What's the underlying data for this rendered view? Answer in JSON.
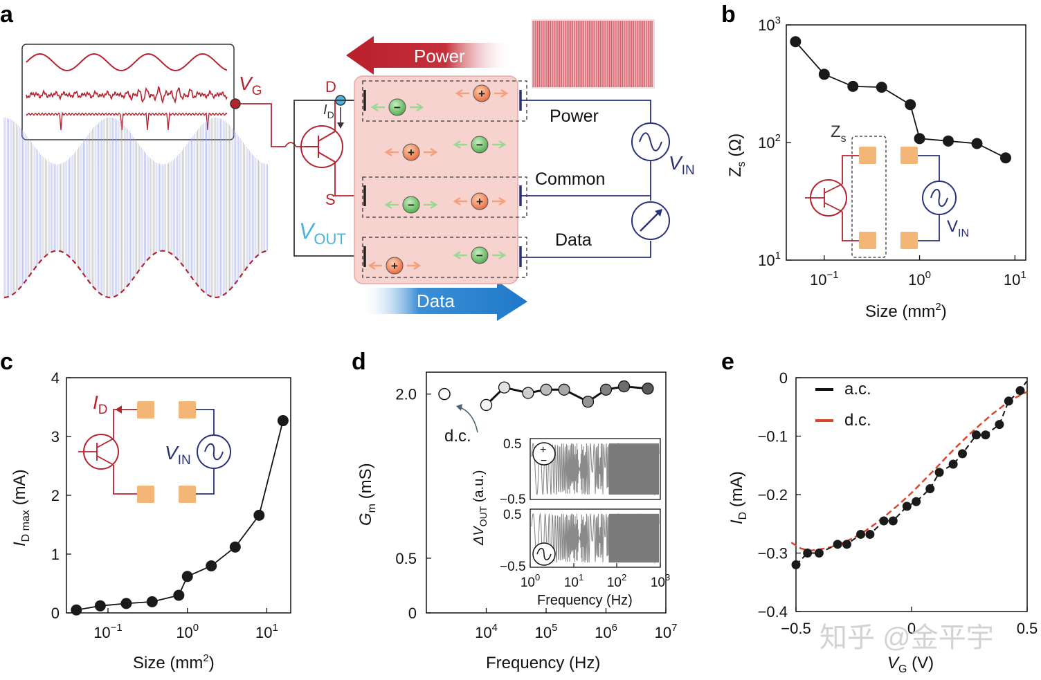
{
  "panel_letters": {
    "a": "a",
    "b": "b",
    "c": "c",
    "d": "d",
    "e": "e"
  },
  "panel_a": {
    "vg_label": "V",
    "vg_sub": "G",
    "id_label": "I",
    "id_sub": "D",
    "d_label": "D",
    "s_label": "S",
    "vout_label": "V",
    "vout_sub": "OUT",
    "vin_label": "V",
    "vin_sub": "IN",
    "power_arrow": "Power",
    "data_arrow": "Data",
    "channels": [
      "Power",
      "Common",
      "Data"
    ],
    "plus": "+",
    "minus": "−"
  },
  "colors": {
    "red": "#b5232f",
    "blue": "#1f78c8",
    "navy": "#27317a",
    "orange": "#f3b677",
    "green": "#7ccb74",
    "pink": "#f7d3cf",
    "cyan": "#49b3dd"
  },
  "chart_data": [
    {
      "panel": "b",
      "type": "scatter",
      "xlabel": "Size (mm",
      "xlabel_sup": "2",
      "xlabel_end": ")",
      "ylabel": "Z",
      "ylabel_sub": "s",
      "ylabel_unit": " (Ω)",
      "xscale": "log",
      "yscale": "log",
      "xlim": [
        0.04,
        13
      ],
      "ylim": [
        10,
        1000
      ],
      "xticks": [
        {
          "base": "10",
          "exp": "−1",
          "value": 0.1
        },
        {
          "base": "10",
          "exp": "0",
          "value": 1
        },
        {
          "base": "10",
          "exp": "1",
          "value": 10
        }
      ],
      "yticks": [
        {
          "base": "10",
          "exp": "1",
          "value": 10
        },
        {
          "base": "10",
          "exp": "2",
          "value": 100
        },
        {
          "base": "10",
          "exp": "3",
          "value": 1000
        }
      ],
      "x": [
        0.05,
        0.1,
        0.2,
        0.4,
        0.8,
        1.0,
        2.0,
        4.0,
        8.0
      ],
      "y": [
        720,
        380,
        300,
        295,
        210,
        108,
        103,
        98,
        74
      ],
      "inset_labels": {
        "zs": "Z",
        "zs_sub": "s",
        "vin": "V",
        "vin_sub": "IN"
      }
    },
    {
      "panel": "c",
      "type": "scatter",
      "xlabel": "Size (mm",
      "xlabel_sup": "2",
      "xlabel_end": ")",
      "ylabel": "I",
      "ylabel_sub": "D max",
      "ylabel_unit": " (mA)",
      "xscale": "log",
      "xlim": [
        0.03,
        20
      ],
      "ylim": [
        0,
        4
      ],
      "xticks": [
        {
          "base": "10",
          "exp": "−1",
          "value": 0.1
        },
        {
          "base": "10",
          "exp": "0",
          "value": 1
        },
        {
          "base": "10",
          "exp": "1",
          "value": 10
        }
      ],
      "yticks": [
        "0",
        "1",
        "2",
        "3",
        "4"
      ],
      "x": [
        0.04,
        0.08,
        0.17,
        0.36,
        0.78,
        1.0,
        2.0,
        4.0,
        8.0,
        16.0
      ],
      "y": [
        0.05,
        0.12,
        0.16,
        0.19,
        0.3,
        0.62,
        0.8,
        1.12,
        1.66,
        3.27
      ],
      "inset_labels": {
        "id": "I",
        "id_sub": "D",
        "vin": "V",
        "vin_sub": "IN"
      }
    },
    {
      "panel": "d",
      "type": "scatter",
      "xlabel": "Frequency (Hz)",
      "ylabel": "G",
      "ylabel_sub": "m",
      "ylabel_unit": " (mS)",
      "xscale": "log",
      "xlim": [
        1000,
        10000000
      ],
      "ylim": [
        0,
        2.2
      ],
      "xticks": [
        {
          "base": "10",
          "exp": "4",
          "value": 10000
        },
        {
          "base": "10",
          "exp": "5",
          "value": 100000
        },
        {
          "base": "10",
          "exp": "6",
          "value": 1000000
        },
        {
          "base": "10",
          "exp": "7",
          "value": 10000000
        }
      ],
      "yticks": [
        {
          "label": "0",
          "value": 0
        },
        {
          "label": "0.5",
          "value": 0.5
        },
        {
          "label": "2.0",
          "value": 2.0
        }
      ],
      "dc_point": {
        "x": 2000,
        "y": 2.0
      },
      "dc_label": "d.c.",
      "x": [
        10000,
        20000,
        50000,
        100000,
        200000,
        500000,
        1000000,
        2000000,
        5000000
      ],
      "y": [
        1.9,
        2.06,
        2.01,
        2.04,
        2.04,
        1.93,
        2.04,
        2.07,
        2.05
      ],
      "inset": {
        "ylabel": "ΔV",
        "ylabel_sub": "OUT",
        "ylabel_unit": " (a.u.)",
        "xlabel": "Frequency (Hz)",
        "yticks": [
          "0.5",
          "−0.5"
        ],
        "xticks": [
          {
            "base": "10",
            "exp": "0"
          },
          {
            "base": "10",
            "exp": "1"
          },
          {
            "base": "10",
            "exp": "2"
          },
          {
            "base": "10",
            "exp": "3"
          }
        ],
        "symbols": {
          "plus": "+",
          "minus": "−"
        }
      }
    },
    {
      "panel": "e",
      "type": "line",
      "xlabel": "V",
      "xlabel_sub": "G",
      "xlabel_unit": " (V)",
      "ylabel": "I",
      "ylabel_sub": "D",
      "ylabel_unit": " (mA)",
      "xlim": [
        -0.5,
        0.5
      ],
      "ylim": [
        -0.4,
        0
      ],
      "xticks": [
        {
          "label": "−0.5",
          "value": -0.5
        },
        {
          "label": "0",
          "value": 0
        },
        {
          "label": "0.5",
          "value": 0.5
        }
      ],
      "yticks": [
        {
          "label": "0",
          "value": 0
        },
        {
          "label": "−0.1",
          "value": -0.1
        },
        {
          "label": "−0.2",
          "value": -0.2
        },
        {
          "label": "−0.3",
          "value": -0.3
        },
        {
          "label": "−0.4",
          "value": -0.4
        }
      ],
      "series": [
        {
          "name": "a.c.",
          "color": "#111111",
          "x": [
            -0.5,
            -0.45,
            -0.4,
            -0.32,
            -0.28,
            -0.22,
            -0.18,
            -0.12,
            -0.08,
            -0.02,
            0.02,
            0.08,
            0.12,
            0.18,
            0.22,
            0.28,
            0.32,
            0.38,
            0.42,
            0.47
          ],
          "y": [
            -0.32,
            -0.3,
            -0.3,
            -0.285,
            -0.285,
            -0.268,
            -0.268,
            -0.245,
            -0.245,
            -0.22,
            -0.212,
            -0.19,
            -0.162,
            -0.148,
            -0.13,
            -0.098,
            -0.098,
            -0.08,
            -0.04,
            -0.022
          ]
        },
        {
          "name": "d.c.",
          "color": "#d9472b",
          "x": [
            -0.52,
            -0.48,
            -0.44,
            -0.4,
            -0.35,
            -0.3,
            -0.25,
            -0.2,
            -0.15,
            -0.1,
            -0.05,
            0,
            0.05,
            0.1,
            0.15,
            0.2,
            0.25,
            0.3,
            0.35,
            0.4,
            0.45,
            0.5
          ],
          "y": [
            -0.282,
            -0.292,
            -0.296,
            -0.294,
            -0.29,
            -0.283,
            -0.274,
            -0.262,
            -0.248,
            -0.232,
            -0.215,
            -0.197,
            -0.177,
            -0.157,
            -0.136,
            -0.116,
            -0.097,
            -0.079,
            -0.062,
            -0.047,
            -0.034,
            -0.024
          ]
        }
      ],
      "legend": [
        "a.c.",
        "d.c."
      ]
    }
  ],
  "watermark": "知乎 @金平宇"
}
